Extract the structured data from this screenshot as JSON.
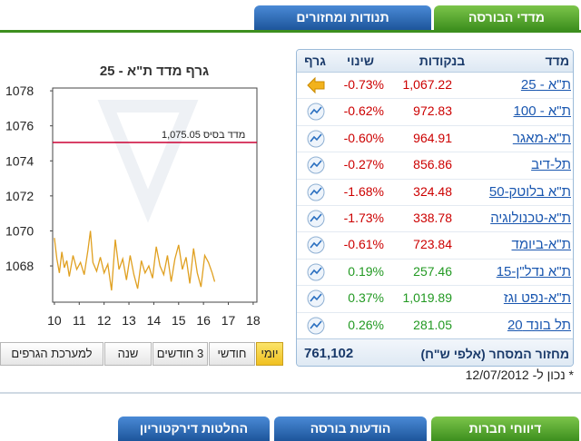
{
  "tabs_top": [
    "מדדי הבורסה",
    "תנודות ומחזורים"
  ],
  "table": {
    "headers": [
      "מדד",
      "בנקודות",
      "שינוי",
      "גרף"
    ],
    "rows": [
      [
        "ת\"א - 25",
        "1,067.22",
        "-0.73%"
      ],
      [
        "ת\"א - 100",
        "972.83",
        "-0.62%"
      ],
      [
        "ת\"א-מאגר",
        "964.91",
        "-0.60%"
      ],
      [
        "תל-דיב",
        "856.86",
        "-0.27%"
      ],
      [
        "ת\"א בלוטק-50",
        "324.48",
        "-1.68%"
      ],
      [
        "ת\"א-טכנולוגיה",
        "338.78",
        "-1.73%"
      ],
      [
        "ת\"א-ביומד",
        "723.84",
        "-0.61%"
      ],
      [
        "ת\"א נדל\"ן-15",
        "257.46",
        "0.19%"
      ],
      [
        "ת\"א-נפט וגז",
        "1,019.89",
        "0.37%"
      ],
      [
        "תל בונד 20",
        "281.05",
        "0.26%"
      ]
    ],
    "footer": {
      "label": "מחזור המסחר (אלפי ש\"ח)",
      "value": "761,102"
    }
  },
  "as_of": "* נכון ל- 12/07/2012",
  "chart_data": {
    "type": "line",
    "title": "גרף מדד ת\"א - 25",
    "x": [
      10.0,
      10.1,
      10.2,
      10.3,
      10.4,
      10.5,
      10.6,
      10.75,
      10.9,
      11.05,
      11.2,
      11.35,
      11.45,
      11.55,
      11.7,
      11.85,
      12.0,
      12.15,
      12.3,
      12.45,
      12.6,
      12.75,
      12.9,
      13.05,
      13.2,
      13.35,
      13.5,
      13.65,
      13.8,
      13.95,
      14.1,
      14.25,
      14.4,
      14.55,
      14.7,
      14.85,
      15.0,
      15.15,
      15.3,
      15.45,
      15.6,
      15.75,
      15.9,
      16.05,
      16.2,
      16.35,
      16.45
    ],
    "series": [
      {
        "color": "#e0a020",
        "values": [
          1069.6,
          1068.4,
          1067.6,
          1068.8,
          1067.9,
          1068.3,
          1067.4,
          1068.6,
          1067.8,
          1068.2,
          1067.5,
          1068.9,
          1070.0,
          1068.2,
          1067.7,
          1068.5,
          1067.6,
          1068.1,
          1066.6,
          1069.5,
          1067.8,
          1068.4,
          1067.2,
          1068.6,
          1067.5,
          1066.7,
          1068.3,
          1067.6,
          1068.0,
          1067.3,
          1069.1,
          1068.0,
          1067.5,
          1068.6,
          1067.1,
          1068.4,
          1069.2,
          1067.8,
          1068.5,
          1067.0,
          1069.0,
          1067.6,
          1066.8,
          1068.6,
          1068.2,
          1067.6,
          1067.1
        ]
      }
    ],
    "xlim": [
      9.93,
      18.15
    ],
    "xticks": [
      10,
      11,
      12,
      13,
      14,
      15,
      16,
      17,
      18
    ],
    "ylim": [
      1065.93,
      1078.16
    ],
    "yticks": [
      1068,
      1070,
      1072,
      1074,
      1076,
      1078
    ],
    "base_line": {
      "value": 1075.05,
      "label": "מדד בסיס 1,075.05",
      "color": "#cc0033"
    }
  },
  "range_buttons": [
    "יומי",
    "חודשי",
    "3 חודשים",
    "שנה",
    "למערכת הגרפים"
  ],
  "tabs_bottom": [
    "דיווחי חברות",
    "הודעות בורסה",
    "החלטות דירקטוריון"
  ]
}
